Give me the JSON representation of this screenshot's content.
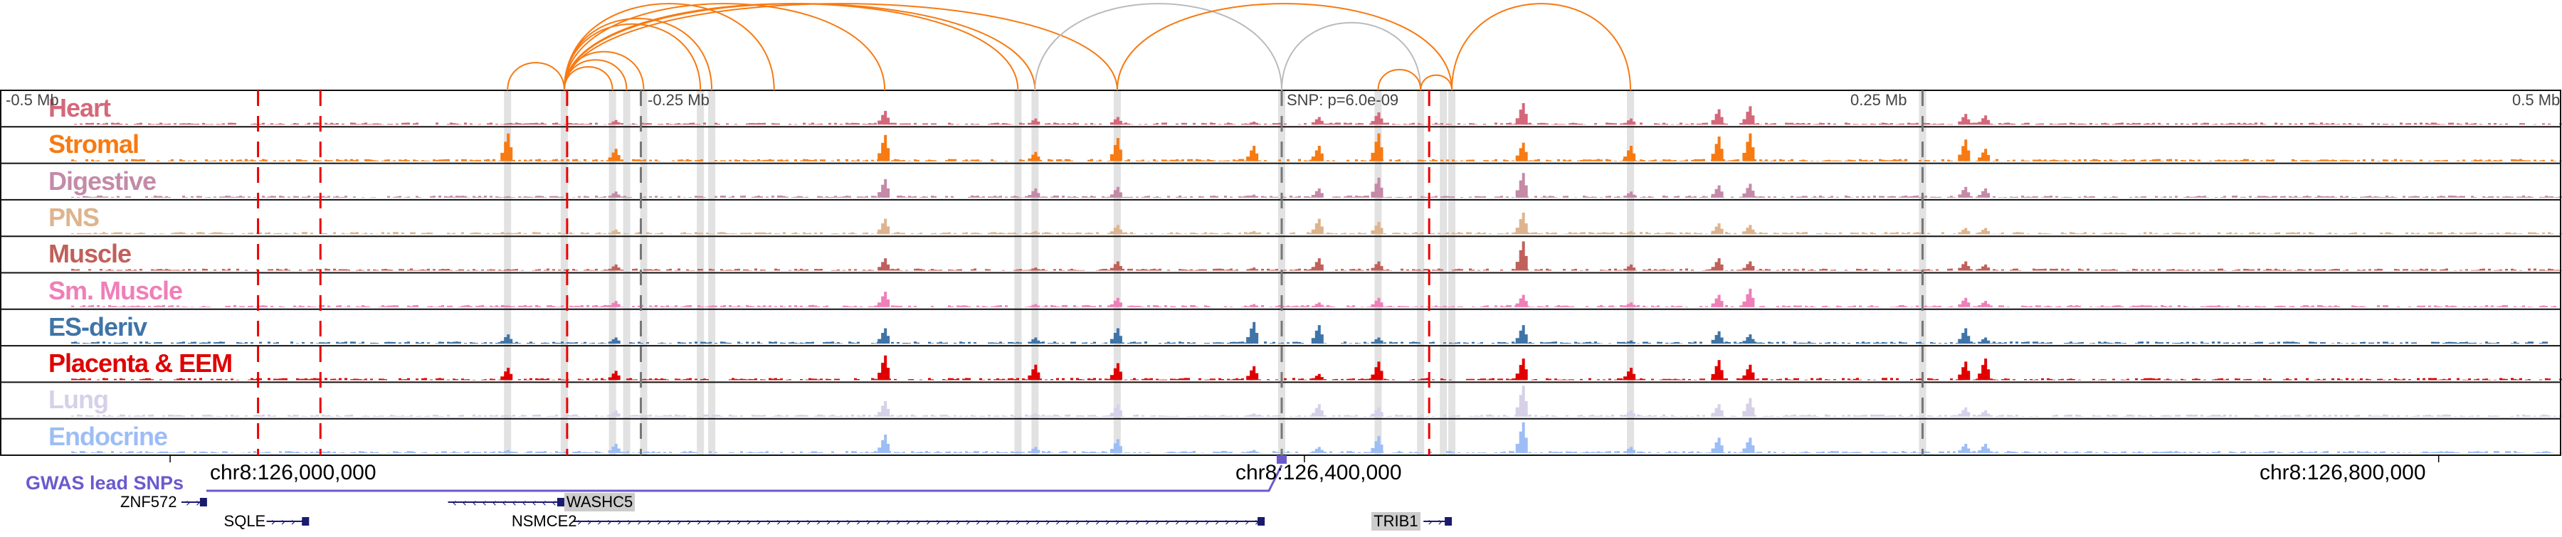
{
  "chart_data": {
    "type": "genome-browser-tracks",
    "region": {
      "chrom": "chr8",
      "start": 125940000,
      "end": 126843000
    },
    "axis_labels": [
      "-0.5 Mb",
      "-0.25 Mb",
      "SNP: p=6.0e-09",
      "0.25 Mb",
      "0.5 Mb"
    ],
    "coordinate_labels": [
      {
        "pos": 126000000,
        "label": "chr8:126,000,000"
      },
      {
        "pos": 126400000,
        "label": "chr8:126,400,000"
      },
      {
        "pos": 126800000,
        "label": "chr8:126,800,000"
      }
    ],
    "tracks": [
      {
        "name": "Heart",
        "color": "#d4687a",
        "peaks": [
          0.05,
          0.15,
          0.45,
          0.2,
          0.25,
          0.1,
          0.25,
          0.4,
          0.7,
          0.2,
          0.5,
          0.6,
          0.35,
          0.3
        ]
      },
      {
        "name": "Stromal",
        "color": "#f77a12",
        "peaks": [
          0.9,
          0.4,
          0.85,
          0.3,
          0.75,
          0.5,
          0.5,
          0.9,
          0.6,
          0.5,
          0.8,
          0.9,
          0.7,
          0.4
        ]
      },
      {
        "name": "Digestive",
        "color": "#c48aa8",
        "peaks": [
          0.05,
          0.2,
          0.6,
          0.3,
          0.35,
          0.1,
          0.3,
          0.65,
          0.8,
          0.2,
          0.4,
          0.45,
          0.35,
          0.3
        ]
      },
      {
        "name": "PNS",
        "color": "#deb48e",
        "peaks": [
          0.05,
          0.15,
          0.5,
          0.1,
          0.3,
          0.1,
          0.5,
          0.4,
          0.7,
          0.1,
          0.35,
          0.3,
          0.2,
          0.2
        ]
      },
      {
        "name": "Muscle",
        "color": "#c0605a",
        "peaks": [
          0.05,
          0.2,
          0.4,
          0.1,
          0.3,
          0.1,
          0.4,
          0.3,
          0.95,
          0.2,
          0.4,
          0.3,
          0.3,
          0.2
        ]
      },
      {
        "name": "Sm. Muscle",
        "color": "#ef7fb8",
        "peaks": [
          0.05,
          0.2,
          0.5,
          0.1,
          0.3,
          0.1,
          0.15,
          0.3,
          0.4,
          0.15,
          0.4,
          0.6,
          0.3,
          0.2
        ]
      },
      {
        "name": "ES-deriv",
        "color": "#3f74a8",
        "peaks": [
          0.3,
          0.2,
          0.5,
          0.2,
          0.5,
          0.7,
          0.6,
          0.2,
          0.6,
          0.1,
          0.4,
          0.3,
          0.5,
          0.2
        ]
      },
      {
        "name": "Placenta & EEM",
        "color": "#e00000",
        "peaks": [
          0.4,
          0.3,
          0.8,
          0.5,
          0.55,
          0.45,
          0.2,
          0.6,
          0.7,
          0.4,
          0.65,
          0.5,
          0.6,
          0.7
        ]
      },
      {
        "name": "Lung",
        "color": "#d6d0e8",
        "peaks": [
          0.05,
          0.2,
          0.5,
          0.1,
          0.4,
          0.1,
          0.4,
          0.3,
          1.0,
          0.2,
          0.4,
          0.6,
          0.3,
          0.2
        ]
      },
      {
        "name": "Endocrine",
        "color": "#9dbdf5",
        "peaks": [
          0.1,
          0.3,
          0.6,
          0.2,
          0.45,
          0.1,
          0.2,
          0.55,
          1.0,
          0.2,
          0.5,
          0.5,
          0.3,
          0.3
        ]
      }
    ],
    "peak_positions": [
      126119000,
      126157000,
      126252000,
      126305000,
      126334000,
      126382000,
      126405000,
      126426000,
      126477000,
      126515000,
      126546000,
      126557000,
      126633000,
      126640000
    ],
    "highlights": [
      126119000,
      126139000,
      126156000,
      126161000,
      126167000,
      126187000,
      126191000,
      126299000,
      126305000,
      126334000,
      126392000,
      126426000,
      126441000,
      126449000,
      126452000,
      126515000,
      126618000
    ],
    "red_dashed_lines": [
      126031000,
      126053000,
      126140000,
      126444000
    ],
    "gray_dashed_lines": [
      126166000,
      126392000,
      126618000
    ],
    "loops": [
      {
        "a": 126119000,
        "b": 126139000,
        "color": "#f77a12"
      },
      {
        "a": 126139000,
        "b": 126156000,
        "color": "#f77a12"
      },
      {
        "a": 126139000,
        "b": 126161000,
        "color": "#f77a12"
      },
      {
        "a": 126139000,
        "b": 126167000,
        "color": "#f77a12"
      },
      {
        "a": 126139000,
        "b": 126187000,
        "color": "#f77a12"
      },
      {
        "a": 126139000,
        "b": 126191000,
        "color": "#f77a12"
      },
      {
        "a": 126139000,
        "b": 126213000,
        "color": "#f77a12"
      },
      {
        "a": 126139000,
        "b": 126252000,
        "color": "#f77a12"
      },
      {
        "a": 126139000,
        "b": 126299000,
        "color": "#f77a12"
      },
      {
        "a": 126139000,
        "b": 126305000,
        "color": "#f77a12"
      },
      {
        "a": 126139000,
        "b": 126334000,
        "color": "#f77a12"
      },
      {
        "a": 126305000,
        "b": 126392000,
        "color": "#bbbbbb"
      },
      {
        "a": 126334000,
        "b": 126452000,
        "color": "#f77a12"
      },
      {
        "a": 126392000,
        "b": 126441000,
        "color": "#bbbbbb"
      },
      {
        "a": 126426000,
        "b": 126441000,
        "color": "#f77a12"
      },
      {
        "a": 126441000,
        "b": 126452000,
        "color": "#f77a12"
      },
      {
        "a": 126452000,
        "b": 126515000,
        "color": "#f77a12"
      }
    ],
    "gwas": {
      "label": "GWAS lead SNPs",
      "snp": 126392000,
      "color": "#6a5acd"
    },
    "genes": [
      {
        "name": "ZNF572",
        "start": 126004000,
        "end": 126012000,
        "strand": "+",
        "row": 0,
        "highlight": false
      },
      {
        "name": "SQLE",
        "start": 126034000,
        "end": 126048000,
        "strand": "+",
        "row": 1,
        "highlight": false
      },
      {
        "name": "WASHC5",
        "start": 126098000,
        "end": 126138000,
        "strand": "-",
        "row": 0,
        "highlight": true
      },
      {
        "name": "NSMCE2",
        "start": 126142000,
        "end": 126385000,
        "strand": "+",
        "row": 1,
        "highlight": false
      },
      {
        "name": "TRIB1",
        "start": 126442000,
        "end": 126451000,
        "strand": "+",
        "row": 1,
        "highlight": true
      }
    ]
  }
}
